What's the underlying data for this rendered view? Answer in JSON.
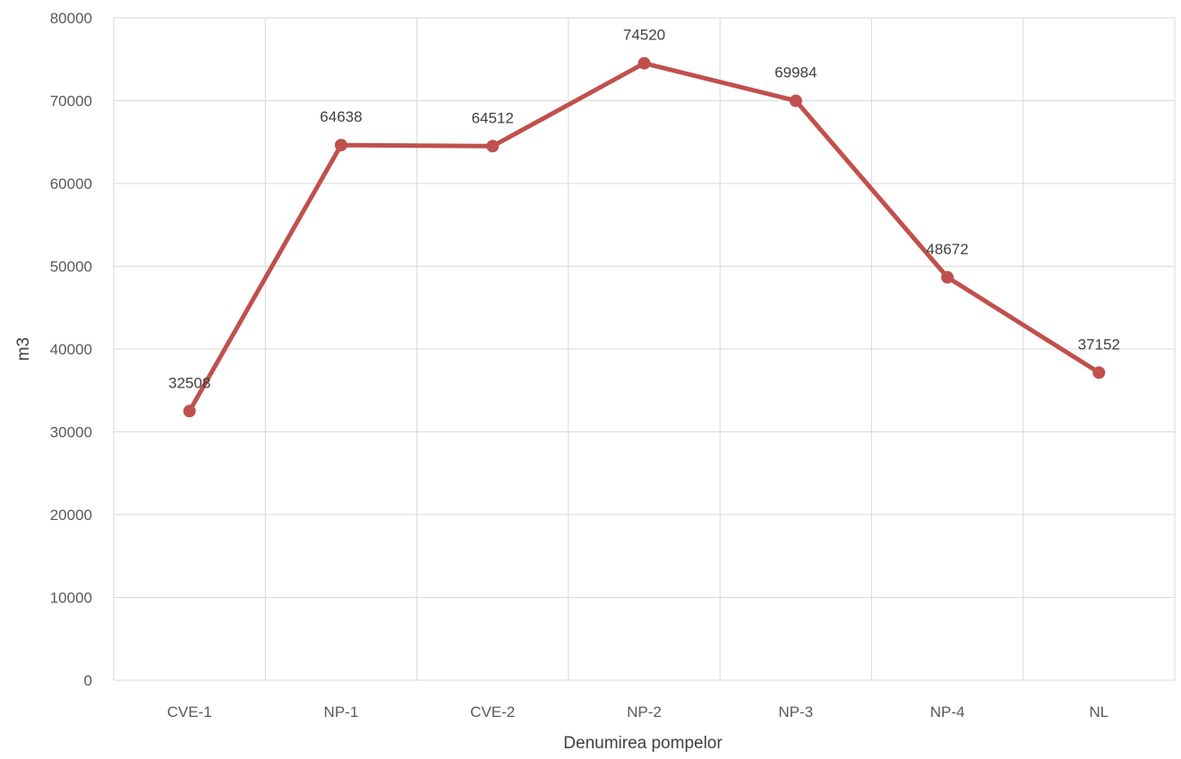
{
  "chart_data": {
    "type": "line",
    "title": "",
    "xlabel": "Denumirea pompelor",
    "ylabel": "m3",
    "categories": [
      "CVE-1",
      "NP-1",
      "CVE-2",
      "NP-2",
      "NP-3",
      "NP-4",
      "NL"
    ],
    "series": [
      {
        "values": [
          32508,
          64638,
          64512,
          74520,
          69984,
          48672,
          37152
        ],
        "color": "#c0504d"
      }
    ],
    "ylim": [
      0,
      80000
    ],
    "yticks": [
      0,
      10000,
      20000,
      30000,
      40000,
      50000,
      60000,
      70000,
      80000
    ],
    "grid": true,
    "legend": "none",
    "data_labels": true
  }
}
